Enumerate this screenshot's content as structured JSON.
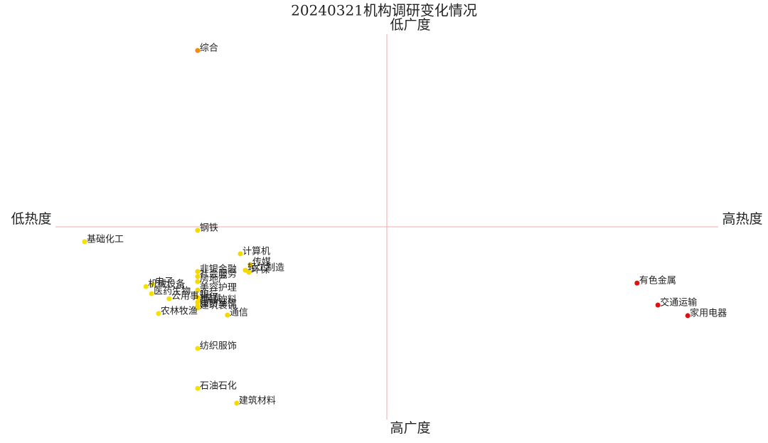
{
  "chart_data": {
    "type": "scatter",
    "title": "20240321机构调研变化情况",
    "x_low_label": "低热度",
    "x_high_label": "高热度",
    "y_high_label": "低广度",
    "y_low_label": "高广度",
    "xlim": [
      -1,
      1
    ],
    "ylim": [
      -1,
      1
    ],
    "categories": [
      "综合",
      "钢铁",
      "基础化工",
      "计算机",
      "传媒",
      "轻工制造",
      "非银金融",
      "环保",
      "社会服务",
      "房地产",
      "电子",
      "机械设备",
      "美容护理",
      "医药生物",
      "银行",
      "公用事业",
      "煤炭",
      "食品饮料",
      "国防军工",
      "建筑装饰",
      "农林牧渔",
      "通信",
      "纺织服饰",
      "石油石化",
      "建筑材料",
      "有色金属",
      "交通运输",
      "家用电器"
    ],
    "x": [
      -0.571,
      -0.571,
      -0.912,
      -0.442,
      -0.412,
      -0.427,
      -0.571,
      -0.416,
      -0.571,
      -0.571,
      -0.706,
      -0.727,
      -0.571,
      -0.71,
      -0.571,
      -0.657,
      -0.562,
      -0.571,
      -0.571,
      -0.571,
      -0.689,
      -0.481,
      -0.571,
      -0.571,
      -0.453,
      0.755,
      0.818,
      0.908
    ],
    "values": [
      0.915,
      -0.018,
      -0.077,
      -0.14,
      -0.196,
      -0.225,
      -0.232,
      -0.236,
      -0.258,
      -0.284,
      -0.299,
      -0.31,
      -0.328,
      -0.347,
      -0.365,
      -0.373,
      -0.384,
      -0.391,
      -0.41,
      -0.421,
      -0.45,
      -0.458,
      -0.631,
      -0.838,
      -0.915,
      -0.292,
      -0.406,
      -0.461
    ],
    "colors": [
      "#f08c10",
      "#f5d800",
      "#f5e000",
      "#f5d800",
      "#f5d800",
      "#f5d800",
      "#f5d800",
      "#f5d800",
      "#f5d800",
      "#f5d800",
      "#f5e000",
      "#f5e000",
      "#f5d800",
      "#f5e000",
      "#f5d800",
      "#f5e000",
      "#f5d800",
      "#f5d800",
      "#f5d800",
      "#f5d800",
      "#f5e000",
      "#f5d800",
      "#f5e000",
      "#f5e000",
      "#f5d800",
      "#e01010",
      "#e01010",
      "#e01010"
    ],
    "axis_color": "#f4a8a8"
  }
}
